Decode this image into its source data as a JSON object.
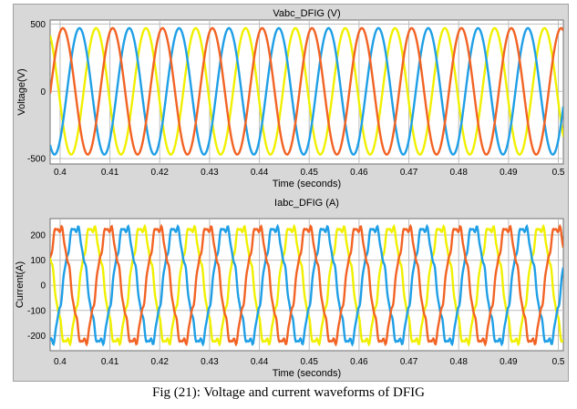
{
  "caption": "Fig (21): Voltage and current waveforms of DFIG",
  "chart_data": [
    {
      "type": "line",
      "title": "Vabc_DFIG (V)",
      "xlabel": "Time (seconds)",
      "ylabel": "Voltage(V)",
      "xlim": [
        0.398,
        0.501
      ],
      "ylim": [
        -540,
        530
      ],
      "grid": true,
      "x_ticks": [
        0.4,
        0.41,
        0.42,
        0.43,
        0.44,
        0.45,
        0.46,
        0.47,
        0.48,
        0.49,
        0.5
      ],
      "x_tick_labels": [
        "0.4",
        "0.41",
        "0.42",
        "0.43",
        "0.44",
        "0.45",
        "0.46",
        "0.47",
        "0.48",
        "0.49",
        "0.5"
      ],
      "y_ticks": [
        500,
        0,
        -500
      ],
      "y_tick_labels": [
        "500",
        "0",
        "-500"
      ],
      "waveform": "sinusoid",
      "frequency_hz": 100,
      "amplitude": 470,
      "series": [
        {
          "color": "#f0f000",
          "phase_deg": 190
        },
        {
          "color": "#1f9fe6",
          "phase_deg": 310
        },
        {
          "color": "#f26324",
          "phase_deg": 70
        }
      ]
    },
    {
      "type": "line",
      "title": "Iabc_DFIG (A)",
      "xlabel": "Time (seconds)",
      "ylabel": "Current(A)",
      "xlim": [
        0.398,
        0.501
      ],
      "ylim": [
        -260,
        265
      ],
      "grid": true,
      "x_ticks": [
        0.4,
        0.41,
        0.42,
        0.43,
        0.44,
        0.45,
        0.46,
        0.47,
        0.48,
        0.49,
        0.5
      ],
      "x_tick_labels": [
        "0.4",
        "0.41",
        "0.42",
        "0.43",
        "0.44",
        "0.45",
        "0.46",
        "0.47",
        "0.48",
        "0.49",
        "0.5"
      ],
      "y_ticks": [
        200,
        100,
        0,
        -100,
        -200
      ],
      "y_tick_labels": [
        "200",
        "100",
        "0",
        "-100",
        "-200"
      ],
      "waveform": "sinusoid with ripple",
      "frequency_hz": 100,
      "amplitude": 230,
      "series": [
        {
          "color": "#f0f000",
          "phase_deg": 220
        },
        {
          "color": "#1f9fe6",
          "phase_deg": 340
        },
        {
          "color": "#f26324",
          "phase_deg": 100
        }
      ]
    }
  ]
}
